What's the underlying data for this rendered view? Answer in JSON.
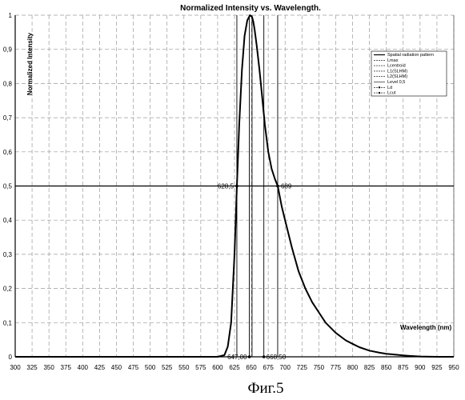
{
  "chart_data": {
    "type": "line",
    "title": "Normalized Intensity vs. Wavelength.",
    "xlabel": "Wavelength (nm)",
    "ylabel": "Normalized Intensity",
    "xlim": [
      300,
      950
    ],
    "ylim": [
      0,
      1
    ],
    "grid": true,
    "legend_position": "top-right",
    "x_ticks": [
      "300",
      "325",
      "350",
      "375",
      "400",
      "425",
      "450",
      "475",
      "500",
      "525",
      "550",
      "575",
      "600",
      "625",
      "650",
      "675",
      "700",
      "725",
      "750",
      "775",
      "800",
      "825",
      "850",
      "875",
      "900",
      "925",
      "950"
    ],
    "y_ticks": [
      "0",
      "0,1",
      "0,2",
      "0,3",
      "0,4",
      "0,5",
      "0,6",
      "0,7",
      "0,8",
      "0,9",
      "1"
    ],
    "legend": [
      "Spatial radiation pattern",
      "Lmax",
      "Lcentroid",
      "L1(SLHM)",
      "L2(SLHM)",
      "Level 0,5",
      "Ld",
      "Lcut"
    ],
    "series": [
      {
        "name": "Spatial radiation pattern",
        "x": [
          300,
          600,
          610,
          615,
          620,
          625,
          628.5,
          632,
          636,
          640,
          644,
          648,
          651,
          653,
          655,
          658,
          662,
          666,
          670,
          675,
          680,
          685,
          689,
          695,
          700,
          710,
          720,
          730,
          740,
          750,
          760,
          775,
          790,
          800,
          810,
          825,
          840,
          850,
          860,
          875,
          890,
          900,
          925,
          950
        ],
        "y": [
          0,
          0,
          0.005,
          0.03,
          0.1,
          0.3,
          0.5,
          0.68,
          0.84,
          0.94,
          0.985,
          1.0,
          0.995,
          0.98,
          0.955,
          0.91,
          0.84,
          0.76,
          0.68,
          0.6,
          0.55,
          0.52,
          0.5,
          0.44,
          0.4,
          0.32,
          0.25,
          0.2,
          0.16,
          0.13,
          0.1,
          0.07,
          0.048,
          0.038,
          0.028,
          0.018,
          0.012,
          0.009,
          0.007,
          0.004,
          0.002,
          0.001,
          0,
          0
        ]
      }
    ],
    "annotations": {
      "half_max_left": "628,5",
      "half_max_right": "689",
      "bottom_left": "647,00",
      "bottom_right": "668,50"
    },
    "marker_lines_x": [
      628.5,
      647,
      651,
      668.5,
      689
    ],
    "half_level_y": 0.5,
    "figure_caption": "Фиг.5"
  }
}
